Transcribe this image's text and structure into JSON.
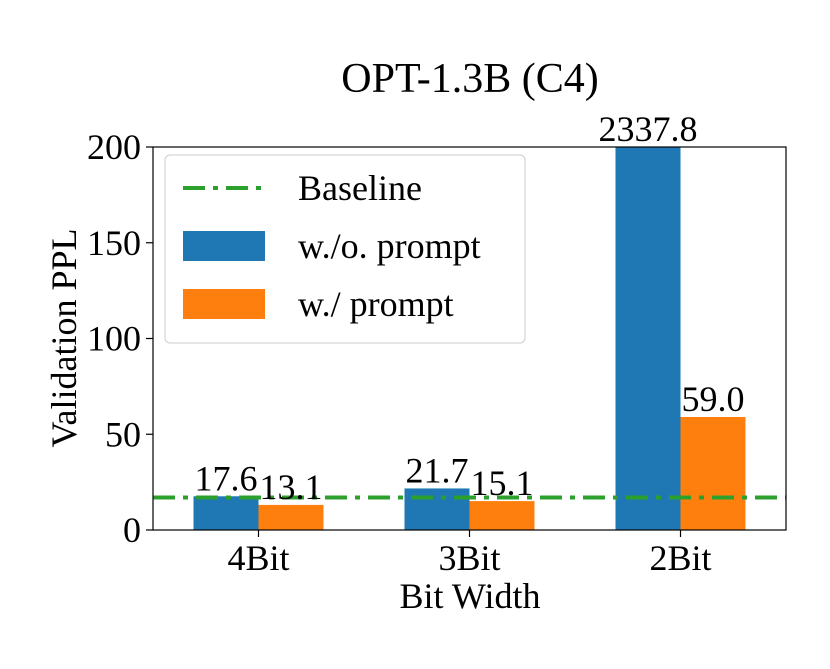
{
  "chart_data": {
    "type": "bar",
    "title": "OPT-1.3B (C4)",
    "x_label": "Bit Width",
    "y_label": "Validation PPL",
    "categories": [
      "4Bit",
      "3Bit",
      "2Bit"
    ],
    "series": [
      {
        "name": "w./o. prompt",
        "color": "#1f77b4",
        "values": [
          17.6,
          21.7,
          2337.8
        ],
        "value_labels": [
          "17.6",
          "21.7",
          "2337.8"
        ]
      },
      {
        "name": "w./ prompt",
        "color": "#ff7f0e",
        "values": [
          13.1,
          15.1,
          59.0
        ],
        "value_labels": [
          "13.1",
          "15.1",
          "59.0"
        ]
      }
    ],
    "baseline": {
      "name": "Baseline",
      "value": 17,
      "color": "#2ca02c"
    },
    "ylim": [
      0,
      200
    ],
    "yticks": [
      0,
      50,
      100,
      150,
      200
    ],
    "legend": "upper left"
  }
}
